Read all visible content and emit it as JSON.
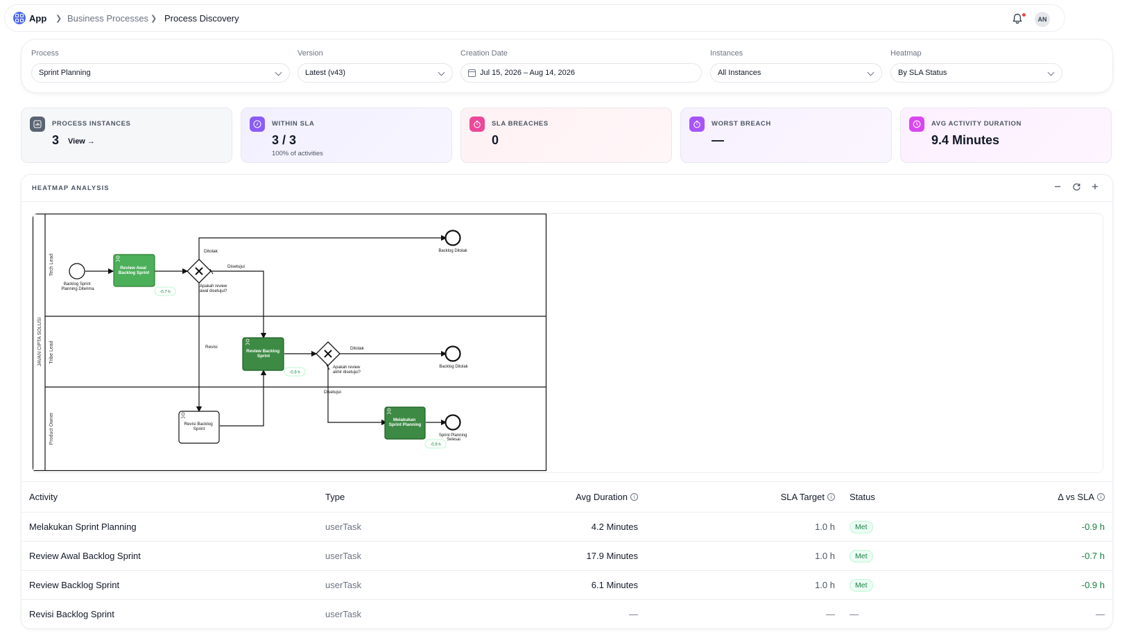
{
  "breadcrumb": {
    "app": "App",
    "items": [
      "Business Processes",
      "Process Discovery"
    ]
  },
  "user": {
    "initials": "AN"
  },
  "filters": {
    "process": {
      "label": "Process",
      "value": "Sprint Planning"
    },
    "version": {
      "label": "Version",
      "value": "Latest (v43)"
    },
    "creation_date": {
      "label": "Creation Date",
      "value": "Jul 15, 2026 – Aug 14, 2026"
    },
    "instances": {
      "label": "Instances",
      "value": "All Instances"
    },
    "heatmap": {
      "label": "Heatmap",
      "value": "By SLA Status"
    }
  },
  "kpis": {
    "process_instances": {
      "label": "PROCESS INSTANCES",
      "value": "3",
      "link": "View →"
    },
    "within_sla": {
      "label": "WITHIN SLA",
      "value": "3 / 3",
      "sub": "100% of activities"
    },
    "sla_breaches": {
      "label": "SLA BREACHES",
      "value": "0"
    },
    "worst_breach": {
      "label": "WORST BREACH",
      "value": "—"
    },
    "avg_duration": {
      "label": "AVG ACTIVITY DURATION",
      "value": "9.4 Minutes"
    }
  },
  "heatmap": {
    "title": "HEATMAP ANALYSIS",
    "diagram": {
      "pool": "JAVAN CIPTA SOLUSI",
      "lanes": [
        "Tech Lead",
        "Tribe Lead",
        "Product Owner"
      ],
      "start_event": [
        "Backlog Sprint",
        "Planning Diterima"
      ],
      "tasks": {
        "review_awal": [
          "Review Awal",
          "Backlog Sprint"
        ],
        "review_backlog": [
          "Review Backlog",
          "Sprint"
        ],
        "revisi": [
          "Revisi Backlog",
          "Sprint"
        ],
        "melakukan": [
          "Melakukan",
          "Sprint Planning"
        ]
      },
      "gateways": {
        "g1": [
          "Apakah review",
          "awal disetujui?"
        ],
        "g2": [
          "Apakah review",
          "akhir disetujui?"
        ]
      },
      "end_events": {
        "rejected1": "Backlog Ditolak",
        "rejected2": "Backlog Ditolak",
        "done": [
          "Sprint Planning",
          "Selesai"
        ]
      },
      "flow_labels": {
        "ditolak": "Ditolak",
        "disetujui": "Disetujui",
        "revisi": "Revisi"
      },
      "deltas": {
        "review_awal": "-0.7 h",
        "review_backlog": "-0.9 h",
        "melakukan": "-0.9 h"
      }
    }
  },
  "table": {
    "headers": {
      "activity": "Activity",
      "type": "Type",
      "avg_duration": "Avg Duration",
      "sla_target": "SLA Target",
      "status": "Status",
      "delta": "Δ vs SLA"
    },
    "rows": [
      {
        "activity": "Melakukan Sprint Planning",
        "type": "userTask",
        "avg_duration": "4.2 Minutes",
        "sla_target": "1.0 h",
        "status": "Met",
        "delta": "-0.9 h"
      },
      {
        "activity": "Review Awal Backlog Sprint",
        "type": "userTask",
        "avg_duration": "17.9 Minutes",
        "sla_target": "1.0 h",
        "status": "Met",
        "delta": "-0.7 h"
      },
      {
        "activity": "Review Backlog Sprint",
        "type": "userTask",
        "avg_duration": "6.1 Minutes",
        "sla_target": "1.0 h",
        "status": "Met",
        "delta": "-0.9 h"
      },
      {
        "activity": "Revisi Backlog Sprint",
        "type": "userTask",
        "avg_duration": "—",
        "sla_target": "—",
        "status": "—",
        "delta": "—"
      }
    ]
  },
  "colors": {
    "accent": "#4f6bed",
    "task_green_light": "#4caf5a",
    "task_green_dark": "#3d8a45",
    "met_green": "#15803d"
  }
}
